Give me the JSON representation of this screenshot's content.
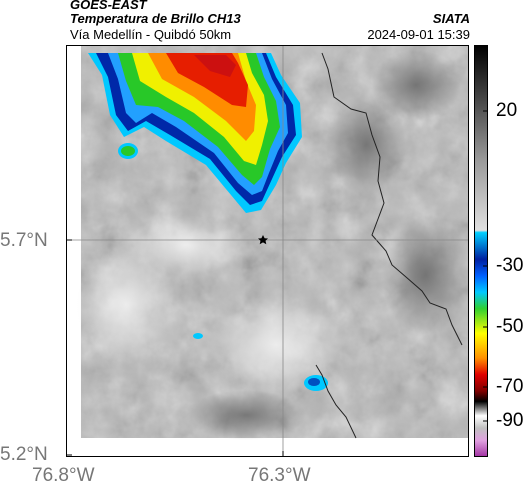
{
  "header": {
    "agency": "GOES-EAST",
    "product": "Temperatura de Brillo CH13",
    "organization": "SIATA",
    "route": "Vía Medellín - Quibdó 50km",
    "timestamp": "2024-09-01 15:39"
  },
  "map": {
    "lat_labels": [
      "5.7°N",
      "5.2°N"
    ],
    "lon_labels": [
      "76.8°W",
      "76.3°W"
    ],
    "marker": "star-marker"
  },
  "colorbar": {
    "labels": [
      "20",
      "-30",
      "-50",
      "-70",
      "-90"
    ],
    "colors": {
      "warm_gray": "#bdbdbd",
      "cyan": "#00d0ff",
      "blue": "#0020a0",
      "green": "#30d030",
      "yellow": "#ffff00",
      "orange": "#ff9000",
      "red": "#e00000",
      "black": "#000000",
      "magenta": "#c050c0"
    }
  }
}
